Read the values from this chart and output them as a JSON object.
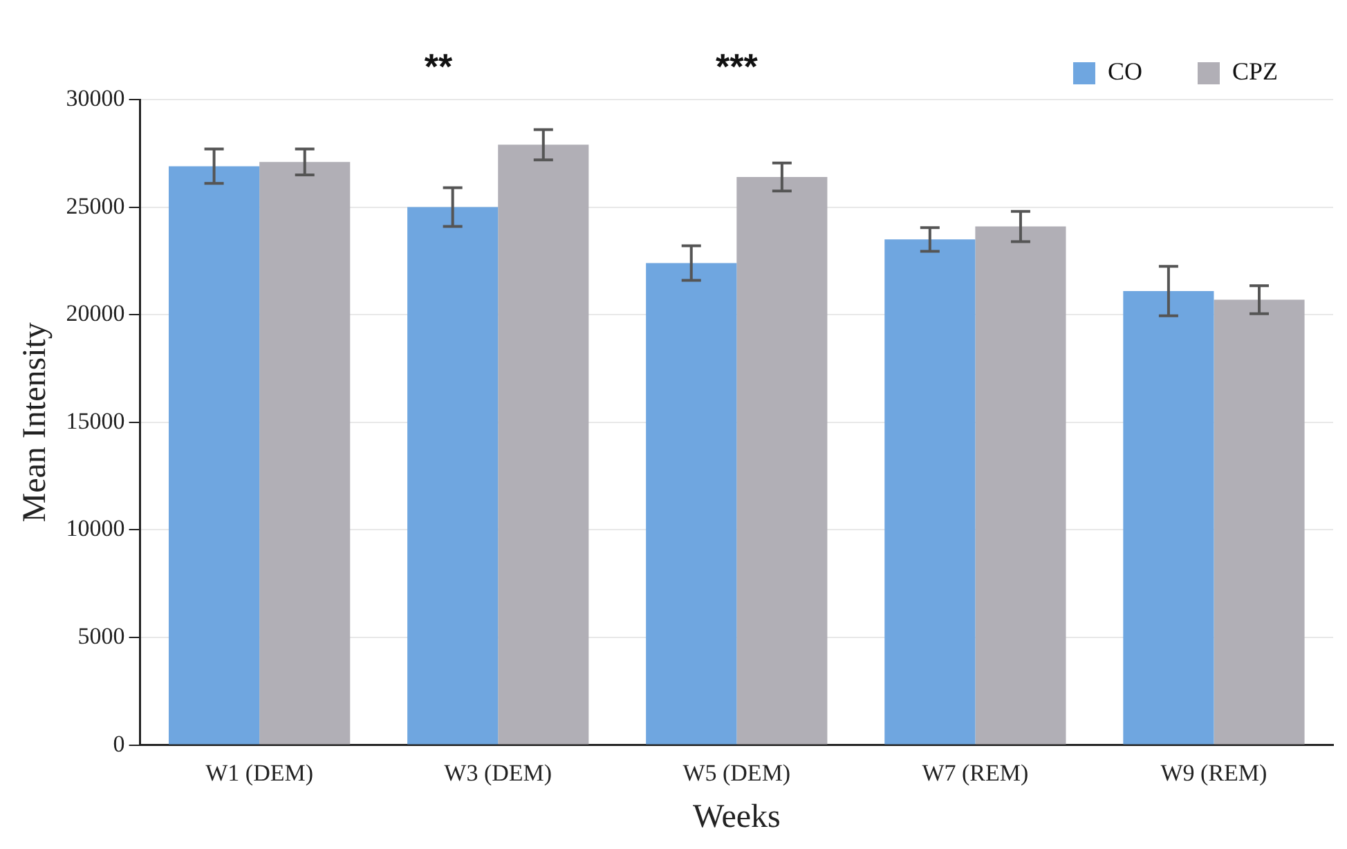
{
  "chart_data": {
    "type": "bar",
    "xlabel": "Weeks",
    "ylabel": "Mean Intensity",
    "categories": [
      "W1 (DEM)",
      "W3 (DEM)",
      "W5 (DEM)",
      "W7 (REM)",
      "W9 (REM)"
    ],
    "series": [
      {
        "name": "CO",
        "color": "#6fa6e0",
        "values": [
          26900,
          25000,
          22400,
          23500,
          21100
        ],
        "errors": [
          800,
          900,
          800,
          550,
          1150
        ]
      },
      {
        "name": "CPZ",
        "color": "#b1afb6",
        "values": [
          27100,
          27900,
          26400,
          24100,
          20700
        ],
        "errors": [
          600,
          700,
          650,
          700,
          650
        ]
      }
    ],
    "ylim": [
      0,
      30000
    ],
    "yticks": [
      0,
      5000,
      10000,
      15000,
      20000,
      25000,
      30000
    ],
    "grid": "y",
    "legend": "top right",
    "annotations": [
      "**",
      "***"
    ]
  }
}
